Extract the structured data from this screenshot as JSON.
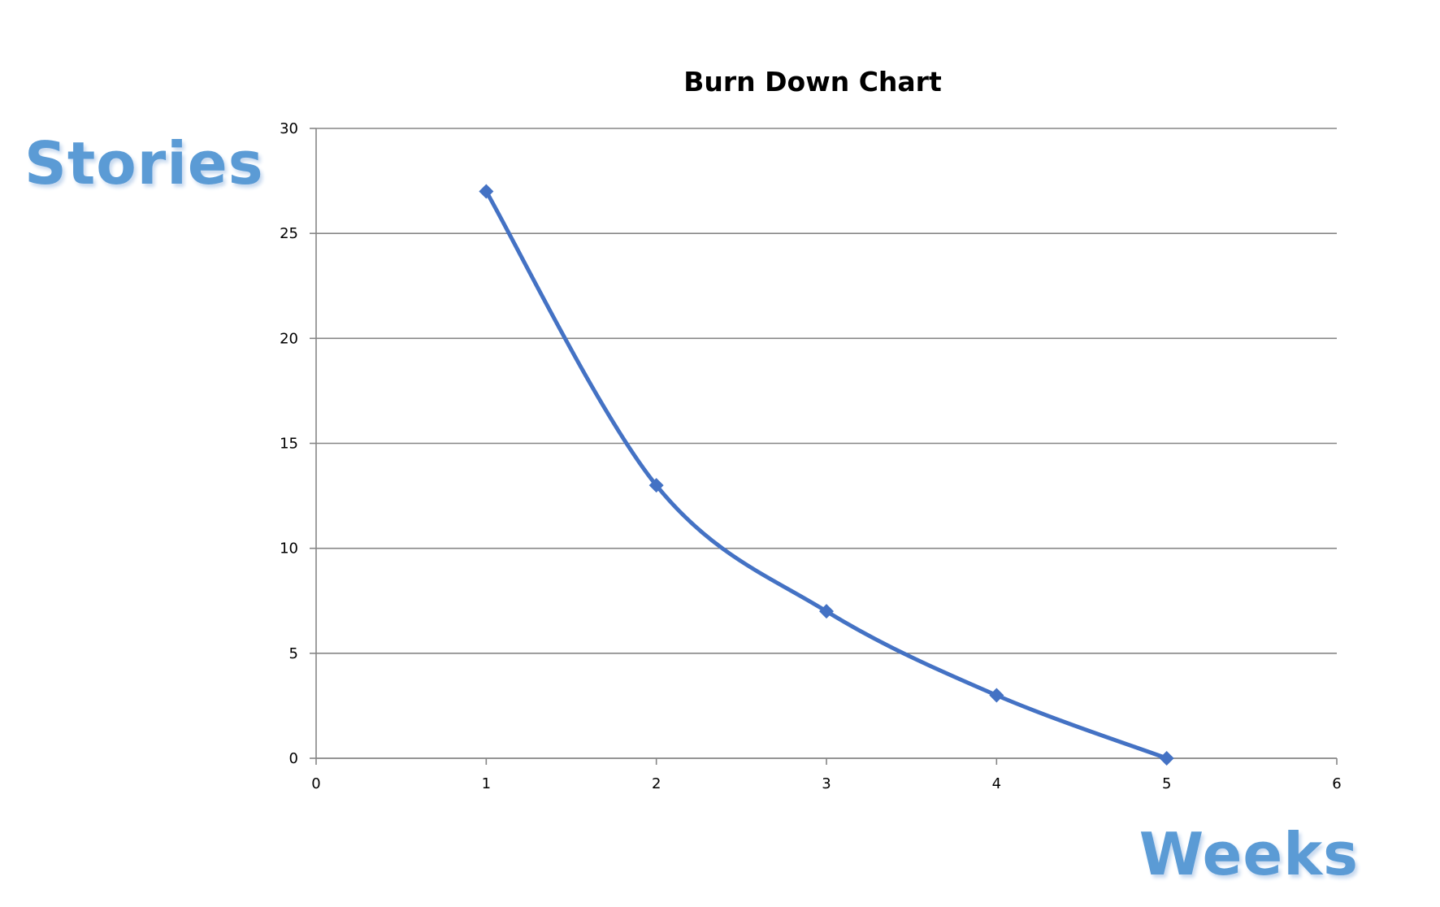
{
  "chart_data": {
    "type": "line",
    "title": "Burn Down Chart",
    "xlabel": "Weeks",
    "ylabel": "Stories",
    "xlim": [
      0,
      6
    ],
    "ylim": [
      0,
      30
    ],
    "x_ticks": [
      0,
      1,
      2,
      3,
      4,
      5,
      6
    ],
    "y_ticks": [
      0,
      5,
      10,
      15,
      20,
      25,
      30
    ],
    "grid": "horizontal",
    "line_style": "smoothed",
    "marker": "diamond",
    "series": [
      {
        "x": [
          1,
          2,
          3,
          4,
          5
        ],
        "values": [
          27,
          13,
          7,
          3,
          0
        ]
      }
    ]
  },
  "colors": {
    "series": "#4472c4",
    "axis_label": "#5b9bd5",
    "grid": "#868686",
    "axis": "#868686"
  }
}
